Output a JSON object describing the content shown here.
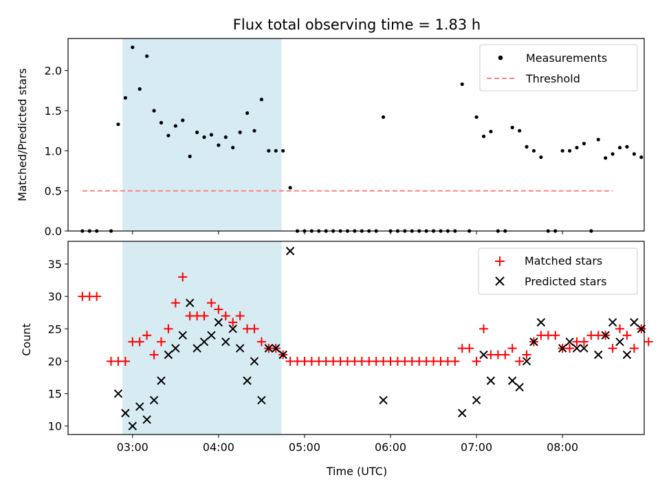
{
  "figure": {
    "title": "Flux total observing time = 1.83 h",
    "xlabel": "Time (UTC)",
    "xticks": [
      "03:00",
      "04:00",
      "05:00",
      "06:00",
      "07:00",
      "08:00"
    ]
  },
  "colors": {
    "measurements": "#000000",
    "threshold": "#ff7f7f",
    "matched": "#ff0000",
    "predicted": "#000000",
    "span": "#add8e6"
  },
  "chart_data": [
    {
      "type": "scatter",
      "ylabel": "Matched/Predicted stars",
      "xlim": [
        "02:15",
        "08:57"
      ],
      "ylim": [
        0,
        2.4
      ],
      "yticks": [
        "0.0",
        "0.5",
        "1.0",
        "1.5",
        "2.0"
      ],
      "highlight_span": [
        "02:53",
        "04:44"
      ],
      "legend": {
        "placement": "top-right",
        "entries": [
          "Measurements",
          "Threshold"
        ]
      },
      "threshold": {
        "name": "Threshold",
        "y": 0.5,
        "x": [
          "02:25",
          "08:35"
        ]
      },
      "series": [
        {
          "name": "Measurements",
          "points": [
            [
              "02:25",
              0
            ],
            [
              "02:30",
              0
            ],
            [
              "02:35",
              0
            ],
            [
              "02:45",
              0
            ],
            [
              "02:50",
              1.33
            ],
            [
              "02:55",
              1.66
            ],
            [
              "03:00",
              2.29
            ],
            [
              "03:05",
              1.77
            ],
            [
              "03:10",
              2.18
            ],
            [
              "03:15",
              1.5
            ],
            [
              "03:20",
              1.35
            ],
            [
              "03:25",
              1.19
            ],
            [
              "03:30",
              1.31
            ],
            [
              "03:35",
              1.38
            ],
            [
              "03:40",
              0.93
            ],
            [
              "03:45",
              1.23
            ],
            [
              "03:50",
              1.17
            ],
            [
              "03:55",
              1.2
            ],
            [
              "04:00",
              1.07
            ],
            [
              "04:05",
              1.17
            ],
            [
              "04:10",
              1.04
            ],
            [
              "04:15",
              1.23
            ],
            [
              "04:20",
              1.47
            ],
            [
              "04:25",
              1.25
            ],
            [
              "04:30",
              1.64
            ],
            [
              "04:35",
              1.0
            ],
            [
              "04:40",
              1.0
            ],
            [
              "04:45",
              1.0
            ],
            [
              "04:50",
              0.54
            ],
            [
              "04:55",
              0
            ],
            [
              "05:00",
              0
            ],
            [
              "05:05",
              0
            ],
            [
              "05:10",
              0
            ],
            [
              "05:15",
              0
            ],
            [
              "05:20",
              0
            ],
            [
              "05:25",
              0
            ],
            [
              "05:30",
              0
            ],
            [
              "05:35",
              0
            ],
            [
              "05:40",
              0
            ],
            [
              "05:45",
              0
            ],
            [
              "05:50",
              0
            ],
            [
              "05:55",
              1.42
            ],
            [
              "06:00",
              0
            ],
            [
              "06:05",
              0
            ],
            [
              "06:10",
              0
            ],
            [
              "06:15",
              0
            ],
            [
              "06:20",
              0
            ],
            [
              "06:25",
              0
            ],
            [
              "06:30",
              0
            ],
            [
              "06:35",
              0
            ],
            [
              "06:40",
              0
            ],
            [
              "06:45",
              0
            ],
            [
              "06:50",
              1.83
            ],
            [
              "06:55",
              0
            ],
            [
              "07:00",
              1.42
            ],
            [
              "07:05",
              1.18
            ],
            [
              "07:10",
              1.24
            ],
            [
              "07:15",
              0
            ],
            [
              "07:20",
              0
            ],
            [
              "07:25",
              1.29
            ],
            [
              "07:30",
              1.25
            ],
            [
              "07:35",
              1.05
            ],
            [
              "07:40",
              1.0
            ],
            [
              "07:45",
              0.92
            ],
            [
              "07:50",
              0
            ],
            [
              "07:55",
              0
            ],
            [
              "08:00",
              1.0
            ],
            [
              "08:05",
              1.0
            ],
            [
              "08:10",
              1.04
            ],
            [
              "08:15",
              1.09
            ],
            [
              "08:20",
              0
            ],
            [
              "08:25",
              1.14
            ],
            [
              "08:30",
              0.91
            ],
            [
              "08:35",
              0.96
            ],
            [
              "08:40",
              1.04
            ],
            [
              "08:45",
              1.05
            ],
            [
              "08:50",
              0.96
            ],
            [
              "08:55",
              0.92
            ]
          ]
        }
      ]
    },
    {
      "type": "scatter",
      "ylabel": "Count",
      "xlim": [
        "02:15",
        "08:57"
      ],
      "ylim": [
        8.7,
        38.5
      ],
      "yticks": [
        "10",
        "15",
        "20",
        "25",
        "30",
        "35"
      ],
      "highlight_span": [
        "02:53",
        "04:44"
      ],
      "legend": {
        "placement": "top-right",
        "entries": [
          "Matched stars",
          "Predicted stars"
        ]
      },
      "series": [
        {
          "name": "Matched stars",
          "points": [
            [
              "02:25",
              30
            ],
            [
              "02:30",
              30
            ],
            [
              "02:35",
              30
            ],
            [
              "02:45",
              20
            ],
            [
              "02:50",
              20
            ],
            [
              "02:55",
              20
            ],
            [
              "03:00",
              23
            ],
            [
              "03:05",
              23
            ],
            [
              "03:10",
              24
            ],
            [
              "03:15",
              21
            ],
            [
              "03:20",
              23
            ],
            [
              "03:25",
              25
            ],
            [
              "03:30",
              29
            ],
            [
              "03:35",
              33
            ],
            [
              "03:40",
              27
            ],
            [
              "03:45",
              27
            ],
            [
              "03:50",
              27
            ],
            [
              "03:55",
              29
            ],
            [
              "04:00",
              28
            ],
            [
              "04:05",
              27
            ],
            [
              "04:10",
              26
            ],
            [
              "04:15",
              27
            ],
            [
              "04:20",
              25
            ],
            [
              "04:25",
              25
            ],
            [
              "04:30",
              23
            ],
            [
              "04:35",
              22
            ],
            [
              "04:40",
              22
            ],
            [
              "04:45",
              21
            ],
            [
              "04:50",
              20
            ],
            [
              "04:55",
              20
            ],
            [
              "05:00",
              20
            ],
            [
              "05:05",
              20
            ],
            [
              "05:10",
              20
            ],
            [
              "05:15",
              20
            ],
            [
              "05:20",
              20
            ],
            [
              "05:25",
              20
            ],
            [
              "05:30",
              20
            ],
            [
              "05:35",
              20
            ],
            [
              "05:40",
              20
            ],
            [
              "05:45",
              20
            ],
            [
              "05:50",
              20
            ],
            [
              "05:55",
              20
            ],
            [
              "06:00",
              20
            ],
            [
              "06:05",
              20
            ],
            [
              "06:10",
              20
            ],
            [
              "06:15",
              20
            ],
            [
              "06:20",
              20
            ],
            [
              "06:25",
              20
            ],
            [
              "06:30",
              20
            ],
            [
              "06:35",
              20
            ],
            [
              "06:40",
              20
            ],
            [
              "06:45",
              20
            ],
            [
              "06:50",
              22
            ],
            [
              "06:55",
              22
            ],
            [
              "07:00",
              20
            ],
            [
              "07:05",
              25
            ],
            [
              "07:10",
              21
            ],
            [
              "07:15",
              21
            ],
            [
              "07:20",
              21
            ],
            [
              "07:25",
              22
            ],
            [
              "07:30",
              20
            ],
            [
              "07:35",
              21
            ],
            [
              "07:40",
              23
            ],
            [
              "07:45",
              24
            ],
            [
              "07:50",
              24
            ],
            [
              "07:55",
              24
            ],
            [
              "08:00",
              22
            ],
            [
              "08:05",
              22
            ],
            [
              "08:10",
              23
            ],
            [
              "08:15",
              23
            ],
            [
              "08:20",
              24
            ],
            [
              "08:25",
              24
            ],
            [
              "08:30",
              24
            ],
            [
              "08:35",
              22
            ],
            [
              "08:40",
              25
            ],
            [
              "08:45",
              24
            ],
            [
              "08:50",
              22
            ],
            [
              "08:55",
              25
            ],
            [
              "09:00",
              23
            ]
          ]
        },
        {
          "name": "Predicted stars",
          "points": [
            [
              "02:50",
              15
            ],
            [
              "02:55",
              12
            ],
            [
              "03:00",
              10
            ],
            [
              "03:05",
              13
            ],
            [
              "03:10",
              11
            ],
            [
              "03:15",
              14
            ],
            [
              "03:20",
              17
            ],
            [
              "03:25",
              21
            ],
            [
              "03:30",
              22
            ],
            [
              "03:35",
              24
            ],
            [
              "03:40",
              29
            ],
            [
              "03:45",
              22
            ],
            [
              "03:50",
              23
            ],
            [
              "03:55",
              24
            ],
            [
              "04:00",
              26
            ],
            [
              "04:05",
              23
            ],
            [
              "04:10",
              25
            ],
            [
              "04:15",
              22
            ],
            [
              "04:20",
              17
            ],
            [
              "04:25",
              20
            ],
            [
              "04:30",
              14
            ],
            [
              "04:35",
              22
            ],
            [
              "04:40",
              22
            ],
            [
              "04:45",
              21
            ],
            [
              "04:50",
              37
            ],
            [
              "05:55",
              14
            ],
            [
              "06:50",
              12
            ],
            [
              "07:00",
              14
            ],
            [
              "07:05",
              21
            ],
            [
              "07:10",
              17
            ],
            [
              "07:25",
              17
            ],
            [
              "07:30",
              16
            ],
            [
              "07:35",
              20
            ],
            [
              "07:40",
              23
            ],
            [
              "07:45",
              26
            ],
            [
              "08:00",
              22
            ],
            [
              "08:05",
              23
            ],
            [
              "08:10",
              22
            ],
            [
              "08:15",
              22
            ],
            [
              "08:25",
              21
            ],
            [
              "08:30",
              24
            ],
            [
              "08:35",
              26
            ],
            [
              "08:40",
              23
            ],
            [
              "08:45",
              21
            ],
            [
              "08:50",
              26
            ],
            [
              "08:55",
              25
            ]
          ]
        }
      ]
    }
  ]
}
